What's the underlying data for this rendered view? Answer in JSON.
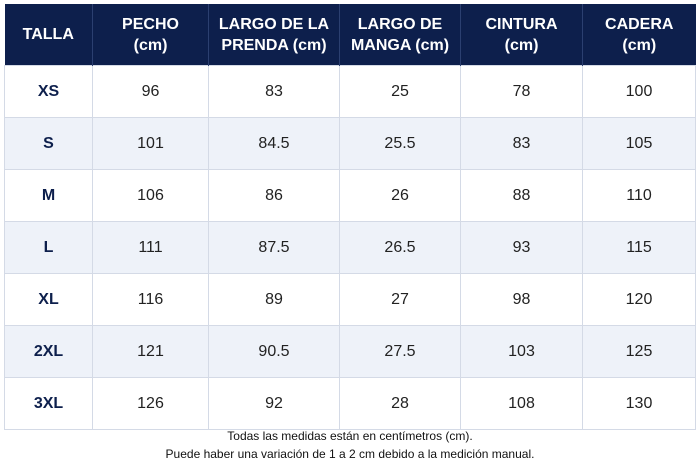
{
  "table": {
    "headers": [
      [
        "TALLA"
      ],
      [
        "PECHO",
        "(cm)"
      ],
      [
        "LARGO DE LA",
        "PRENDA (cm)"
      ],
      [
        "LARGO DE",
        "MANGA (cm)"
      ],
      [
        "CINTURA",
        "(cm)"
      ],
      [
        "CADERA",
        "(cm)"
      ]
    ],
    "rows": [
      [
        "XS",
        "96",
        "83",
        "25",
        "78",
        "100"
      ],
      [
        "S",
        "101",
        "84.5",
        "25.5",
        "83",
        "105"
      ],
      [
        "M",
        "106",
        "86",
        "26",
        "88",
        "110"
      ],
      [
        "L",
        "111",
        "87.5",
        "26.5",
        "93",
        "115"
      ],
      [
        "XL",
        "116",
        "89",
        "27",
        "98",
        "120"
      ],
      [
        "2XL",
        "121",
        "90.5",
        "27.5",
        "103",
        "125"
      ],
      [
        "3XL",
        "126",
        "92",
        "28",
        "108",
        "130"
      ]
    ]
  },
  "footnote": {
    "line1": "Todas las medidas están en centímetros (cm).",
    "line2": "Puede haber una variación de 1 a 2 cm debido a la medición manual."
  },
  "colors": {
    "header_bg": "#0d1f4c",
    "alt_row_bg": "#eef2f9",
    "size_text": "#0d1f4c"
  }
}
